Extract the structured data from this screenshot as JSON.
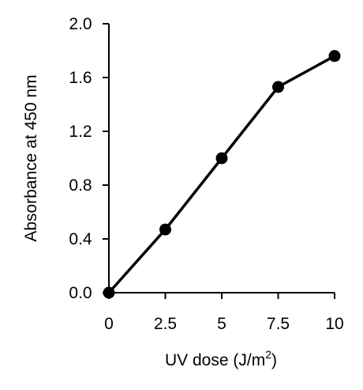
{
  "chart_data": {
    "type": "line",
    "title": "",
    "xlabel": "UV dose (J/m",
    "xlabel_sup": "2",
    "xlabel_end": ")",
    "ylabel": "Absorbance at 450 nm",
    "x": [
      0,
      2.5,
      5,
      7.5,
      10
    ],
    "series": [
      {
        "values": [
          0.0,
          0.47,
          1.0,
          1.53,
          1.76
        ]
      }
    ],
    "xlim": [
      0,
      10
    ],
    "ylim": [
      0,
      2.0
    ],
    "xticks": [
      "0",
      "2.5",
      "5",
      "7.5",
      "10"
    ],
    "yticks": [
      "0.0",
      "0.4",
      "0.8",
      "1.2",
      "1.6",
      "2.0"
    ],
    "grid": false,
    "legend": "none",
    "line_color": "#000000",
    "marker_color": "#000000"
  }
}
